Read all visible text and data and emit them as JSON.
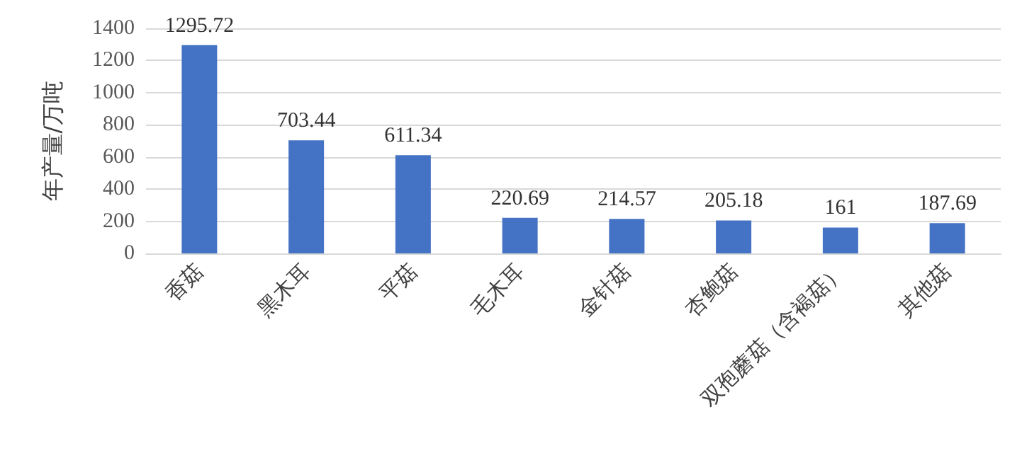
{
  "chart_data": {
    "type": "bar",
    "ylabel": "年产量/万吨",
    "categories": [
      "香菇",
      "黑木耳",
      "平菇",
      "毛木耳",
      "金针菇",
      "杏鲍菇",
      "双孢蘑菇（含褐菇）",
      "其他菇"
    ],
    "values": [
      1295.72,
      703.44,
      611.34,
      220.69,
      214.57,
      205.18,
      161,
      187.69
    ],
    "color": "#4472c4",
    "ylim": [
      0,
      1400
    ],
    "yticks": [
      0,
      200,
      400,
      600,
      800,
      1000,
      1200,
      1400
    ],
    "grid": "y",
    "data_labels": true
  }
}
